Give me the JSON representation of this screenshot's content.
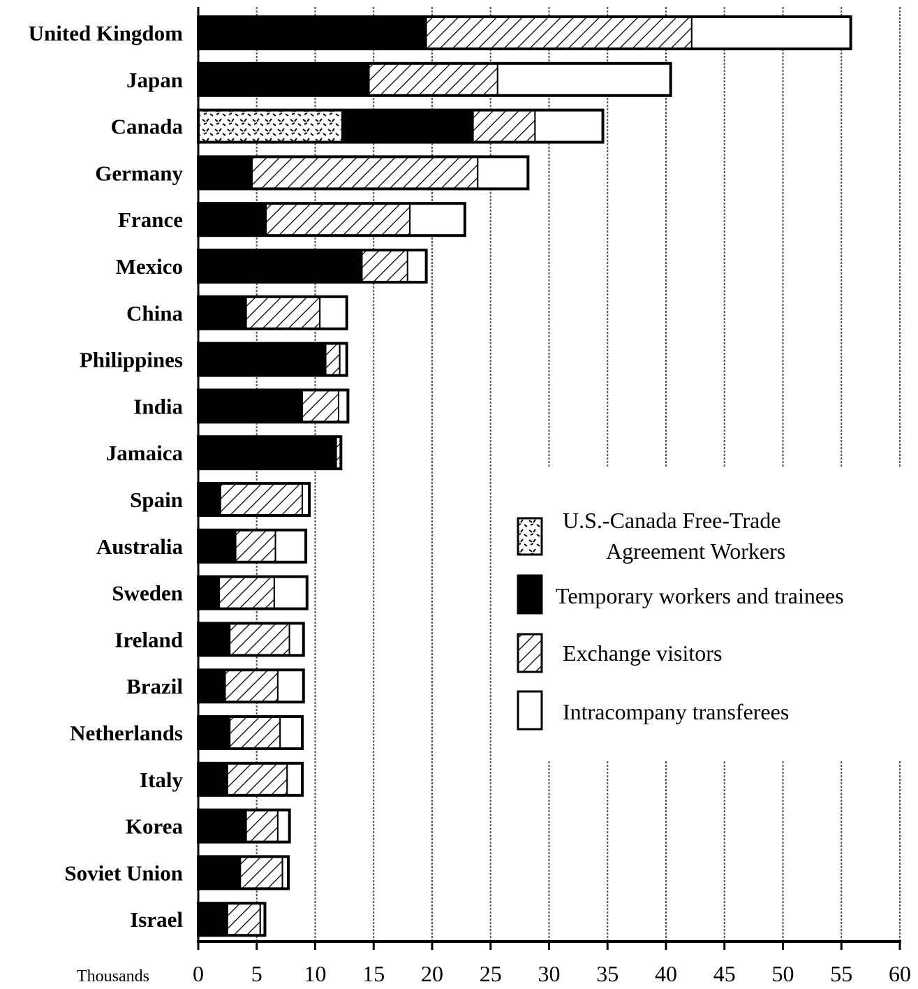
{
  "chart_data": {
    "type": "bar",
    "orientation": "horizontal",
    "stacked": true,
    "xlabel": "Thousands",
    "xlim": [
      0,
      60
    ],
    "xticks": [
      0,
      5,
      10,
      15,
      20,
      25,
      30,
      35,
      40,
      45,
      50,
      55,
      60
    ],
    "grid": "vertical dashed",
    "legend_position": "middle-right",
    "categories": [
      "United Kingdom",
      "Japan",
      "Canada",
      "Germany",
      "France",
      "Mexico",
      "China",
      "Philippines",
      "India",
      "Jamaica",
      "Spain",
      "Australia",
      "Sweden",
      "Ireland",
      "Brazil",
      "Netherlands",
      "Italy",
      "Korea",
      "Soviet Union",
      "Israel"
    ],
    "series": [
      {
        "name": "U.S.-Canada Free-Trade Agreement Workers",
        "pattern": "dotted",
        "values": [
          0,
          0,
          12.3,
          0,
          0,
          0,
          0,
          0,
          0,
          0,
          0,
          0,
          0,
          0,
          0,
          0,
          0,
          0,
          0,
          0
        ]
      },
      {
        "name": "Temporary workers and trainees",
        "pattern": "solid",
        "color": "#000000",
        "values": [
          19.5,
          14.6,
          11.2,
          4.6,
          5.8,
          14.0,
          4.1,
          10.9,
          8.9,
          11.8,
          1.9,
          3.2,
          1.8,
          2.7,
          2.3,
          2.7,
          2.5,
          4.1,
          3.6,
          2.5
        ]
      },
      {
        "name": "Exchange visitors",
        "pattern": "hatched",
        "values": [
          22.7,
          11.0,
          5.3,
          19.3,
          12.3,
          3.9,
          6.3,
          1.2,
          3.1,
          0.4,
          7.0,
          3.4,
          4.7,
          5.1,
          4.5,
          4.3,
          5.1,
          2.7,
          3.6,
          2.8
        ]
      },
      {
        "name": "Intracompany transferees",
        "pattern": "white",
        "color": "#ffffff",
        "values": [
          13.6,
          14.8,
          5.8,
          4.3,
          4.7,
          1.6,
          2.3,
          0.6,
          0.8,
          0,
          0.6,
          2.6,
          2.8,
          1.2,
          2.2,
          1.9,
          1.3,
          1.0,
          0.5,
          0.4
        ]
      }
    ]
  }
}
